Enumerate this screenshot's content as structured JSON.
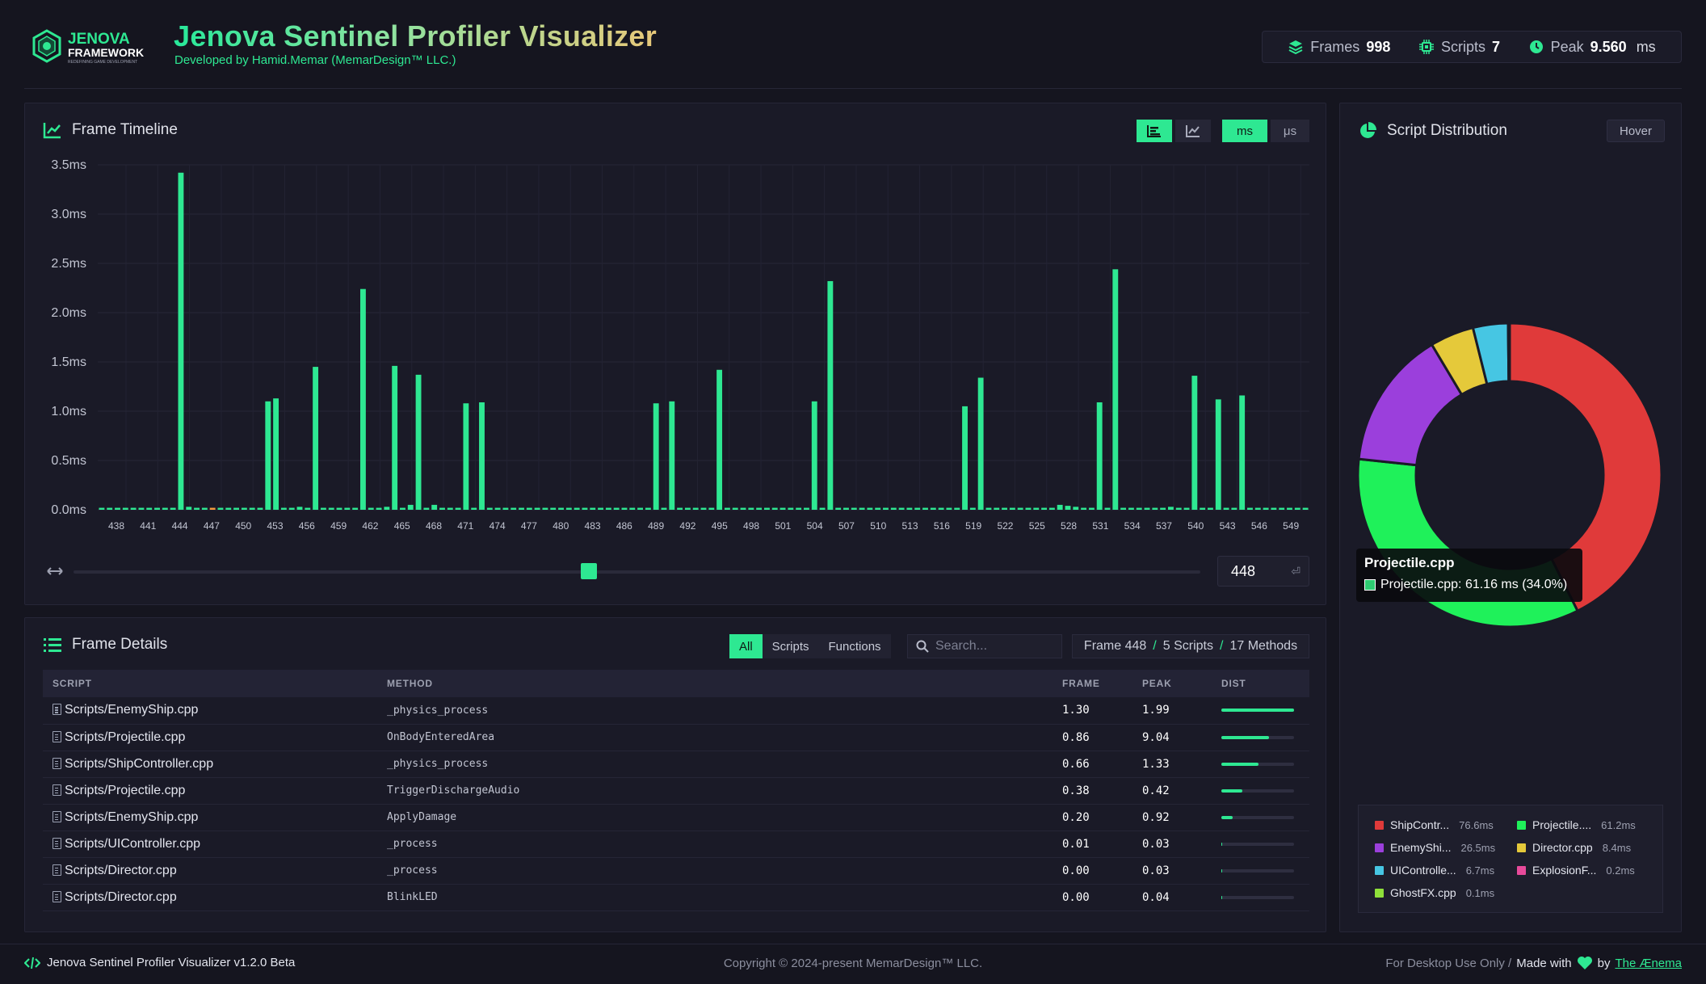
{
  "header": {
    "title": "Jenova Sentinel Profiler Visualizer",
    "subtitle": "Developed by Hamid.Memar (MemarDesign™ LLC.)",
    "logo_line1": "JENOVA",
    "logo_line2": "FRAMEWORK",
    "logo_line3": "REDEFINING GAME DEVELOPMENT"
  },
  "stats": {
    "frames_label": "Frames",
    "frames_value": "998",
    "scripts_label": "Scripts",
    "scripts_value": "7",
    "peak_label": "Peak",
    "peak_value": "9.560",
    "peak_unit": "ms"
  },
  "timeline": {
    "title": "Frame Timeline",
    "unit_ms": "ms",
    "unit_us": "μs",
    "frame_input_value": "448",
    "accent_color": "#2ee892",
    "selected_color": "#f39a3e"
  },
  "chart_data": {
    "type": "bar",
    "y_ticks": [
      "3.5ms",
      "3.0ms",
      "2.5ms",
      "2.0ms",
      "1.5ms",
      "1.0ms",
      "0.5ms",
      "0.0ms"
    ],
    "ylim": [
      0,
      3.5
    ],
    "x_start": 438,
    "x_end": 549,
    "x_labels": [
      "438",
      "441",
      "444",
      "447",
      "450",
      "453",
      "456",
      "459",
      "462",
      "465",
      "468",
      "471",
      "474",
      "477",
      "480",
      "483",
      "486",
      "489",
      "492",
      "495",
      "498",
      "501",
      "504",
      "507",
      "510",
      "513",
      "516",
      "519",
      "522",
      "525",
      "528",
      "531",
      "534",
      "537",
      "540",
      "543",
      "546",
      "549"
    ],
    "selected_frame": 448,
    "values": [
      0.02,
      0.02,
      0.02,
      0.02,
      0.02,
      0.02,
      0.02,
      0.02,
      0.02,
      0.02,
      3.42,
      0.03,
      0.02,
      0.02,
      0.02,
      0.02,
      0.02,
      0.02,
      0.02,
      0.02,
      0.02,
      1.1,
      1.13,
      0.02,
      0.02,
      0.03,
      0.02,
      1.45,
      0.02,
      0.02,
      0.02,
      0.02,
      0.02,
      2.24,
      0.02,
      0.02,
      0.03,
      1.46,
      0.02,
      0.05,
      1.37,
      0.02,
      0.05,
      0.02,
      0.02,
      0.02,
      1.08,
      0.02,
      1.09,
      0.02,
      0.02,
      0.02,
      0.02,
      0.02,
      0.02,
      0.02,
      0.02,
      0.02,
      0.02,
      0.02,
      0.02,
      0.02,
      0.02,
      0.02,
      0.02,
      0.02,
      0.02,
      0.02,
      0.02,
      0.02,
      1.08,
      0.02,
      1.1,
      0.02,
      0.02,
      0.02,
      0.02,
      0.02,
      1.42,
      0.02,
      0.02,
      0.02,
      0.02,
      0.02,
      0.02,
      0.02,
      0.02,
      0.02,
      0.02,
      0.02,
      1.1,
      0.02,
      2.32,
      0.02,
      0.02,
      0.02,
      0.02,
      0.02,
      0.02,
      0.02,
      0.02,
      0.02,
      0.02,
      0.02,
      0.02,
      0.02,
      0.02,
      0.02,
      0.02,
      1.05,
      0.02,
      1.34,
      0.02,
      0.02,
      0.02,
      0.02,
      0.02,
      0.02,
      0.02,
      0.02,
      0.02,
      0.05,
      0.04,
      0.03,
      0.02,
      0.02,
      1.09,
      0.02,
      2.44,
      0.02,
      0.02,
      0.02,
      0.02,
      0.02,
      0.02,
      0.03,
      0.02,
      0.02,
      1.36,
      0.02,
      0.02,
      1.12,
      0.02,
      0.02,
      1.16,
      0.02,
      0.02,
      0.02,
      0.02,
      0.02,
      0.02,
      0.02,
      0.02
    ]
  },
  "details": {
    "title": "Frame Details",
    "filters": [
      "All",
      "Scripts",
      "Functions"
    ],
    "active_filter": "All",
    "search_placeholder": "Search...",
    "crumb_frame": "Frame 448",
    "crumb_scripts": "5 Scripts",
    "crumb_methods": "17 Methods",
    "columns": [
      "SCRIPT",
      "METHOD",
      "FRAME",
      "PEAK",
      "DIST"
    ],
    "rows": [
      {
        "script": "Scripts/EnemyShip.cpp",
        "method": "_physics_process",
        "frame": "1.30",
        "peak": "1.99",
        "dist": 1.0
      },
      {
        "script": "Scripts/Projectile.cpp",
        "method": "OnBodyEnteredArea",
        "frame": "0.86",
        "peak": "9.04",
        "dist": 0.66
      },
      {
        "script": "Scripts/ShipController.cpp",
        "method": "_physics_process",
        "frame": "0.66",
        "peak": "1.33",
        "dist": 0.51
      },
      {
        "script": "Scripts/Projectile.cpp",
        "method": "TriggerDischargeAudio",
        "frame": "0.38",
        "peak": "0.42",
        "dist": 0.29
      },
      {
        "script": "Scripts/EnemyShip.cpp",
        "method": "ApplyDamage",
        "frame": "0.20",
        "peak": "0.92",
        "dist": 0.15
      },
      {
        "script": "Scripts/UIController.cpp",
        "method": "_process",
        "frame": "0.01",
        "peak": "0.03",
        "dist": 0.01
      },
      {
        "script": "Scripts/Director.cpp",
        "method": "_process",
        "frame": "0.00",
        "peak": "0.03",
        "dist": 0.01
      },
      {
        "script": "Scripts/Director.cpp",
        "method": "BlinkLED",
        "frame": "0.00",
        "peak": "0.04",
        "dist": 0.01
      }
    ]
  },
  "distribution": {
    "title": "Script Distribution",
    "mode_button": "Hover",
    "tooltip_title": "Projectile.cpp",
    "tooltip_text": "Projectile.cpp: 61.16 ms (34.0%)",
    "tooltip_color": "#2ecc71",
    "slices": [
      {
        "label": "ShipContr...",
        "value": "76.6ms",
        "amount": 76.6,
        "color": "#e03a3a"
      },
      {
        "label": "Projectile....",
        "value": "61.2ms",
        "amount": 61.2,
        "color": "#1ff15a"
      },
      {
        "label": "EnemyShi...",
        "value": "26.5ms",
        "amount": 26.5,
        "color": "#9b3fdc"
      },
      {
        "label": "Director.cpp",
        "value": "8.4ms",
        "amount": 8.4,
        "color": "#e5c93a"
      },
      {
        "label": "UIControlle...",
        "value": "6.7ms",
        "amount": 6.7,
        "color": "#46c6e3"
      },
      {
        "label": "ExplosionF...",
        "value": "0.2ms",
        "amount": 0.2,
        "color": "#e84a9a"
      },
      {
        "label": "GhostFX.cpp",
        "value": "0.1ms",
        "amount": 0.1,
        "color": "#8fe03a"
      }
    ]
  },
  "footer": {
    "left": "Jenova Sentinel Profiler Visualizer v1.2.0 Beta",
    "middle": "Copyright © 2024-present MemarDesign™ LLC.",
    "right_prefix": "For Desktop Use Only /",
    "made_with": "Made with",
    "by": "by",
    "author": "The Ænema"
  }
}
